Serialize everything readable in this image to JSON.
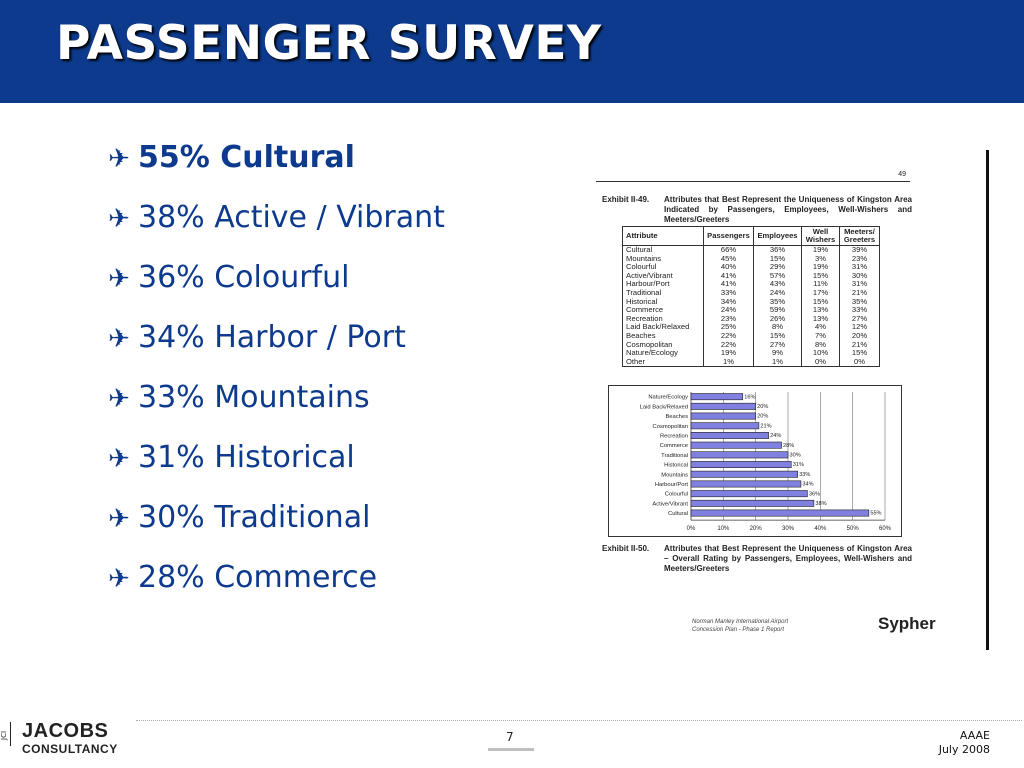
{
  "slide": {
    "title": "PASSENGER SURVEY",
    "bullets": [
      {
        "text": "55% Cultural",
        "bold": true
      },
      {
        "text": "38% Active / Vibrant",
        "bold": false
      },
      {
        "text": "36% Colourful",
        "bold": false
      },
      {
        "text": "34% Harbor / Port",
        "bold": false
      },
      {
        "text": "33% Mountains",
        "bold": false
      },
      {
        "text": "31% Historical",
        "bold": false
      },
      {
        "text": "30% Traditional",
        "bold": false
      },
      {
        "text": "28% Commerce",
        "bold": false
      }
    ],
    "bullet_glyph": "✈",
    "slide_number": "7",
    "corner_line1": "AAAE",
    "corner_line2": "July 2008",
    "logo_line1": "JACOBS",
    "logo_line2": "CONSULTANCY",
    "logo_side": "JCI",
    "colors": {
      "header": "#0d3a8c",
      "text": "#0d3a8c",
      "bar": "#8080e0"
    }
  },
  "document": {
    "page_number": "49",
    "exhibit1_num": "Exhibit II-49.",
    "exhibit1_caption": "Attributes that Best Represent the Uniqueness of Kingston Area Indicated by Passengers, Employees, Well-Wishers and Meeters/Greeters",
    "table": {
      "headers": [
        "Attribute",
        "Passengers",
        "Employees",
        "Well Wishers",
        "Meeters/ Greeters"
      ],
      "rows": [
        [
          "Cultural",
          "66%",
          "36%",
          "19%",
          "39%"
        ],
        [
          "Mountains",
          "45%",
          "15%",
          "3%",
          "23%"
        ],
        [
          "Colourful",
          "40%",
          "29%",
          "19%",
          "31%"
        ],
        [
          "Active/Vibrant",
          "41%",
          "57%",
          "15%",
          "30%"
        ],
        [
          "Harbour/Port",
          "41%",
          "43%",
          "11%",
          "31%"
        ],
        [
          "Traditional",
          "33%",
          "24%",
          "17%",
          "21%"
        ],
        [
          "Historical",
          "34%",
          "35%",
          "15%",
          "35%"
        ],
        [
          "Commerce",
          "24%",
          "59%",
          "13%",
          "33%"
        ],
        [
          "Recreation",
          "23%",
          "26%",
          "13%",
          "27%"
        ],
        [
          "Laid Back/Relaxed",
          "25%",
          "8%",
          "4%",
          "12%"
        ],
        [
          "Beaches",
          "22%",
          "15%",
          "7%",
          "20%"
        ],
        [
          "Cosmopolitan",
          "22%",
          "27%",
          "8%",
          "21%"
        ],
        [
          "Nature/Ecology",
          "19%",
          "9%",
          "10%",
          "15%"
        ],
        [
          "Other",
          "1%",
          "1%",
          "0%",
          "0%"
        ]
      ]
    },
    "exhibit2_num": "Exhibit II-50.",
    "exhibit2_caption": "Attributes that Best Represent the Uniqueness of Kingston Area – Overall Rating by Passengers, Employees, Well-Wishers and Meeters/Greeters",
    "footer_line1": "Norman Manley International Airport",
    "footer_line2": "Concession Plan - Phase 1 Report",
    "brand": "Sypher"
  },
  "chart_data": {
    "type": "bar",
    "orientation": "horizontal",
    "categories": [
      "Nature/Ecology",
      "Laid Back/Relaxed",
      "Beaches",
      "Cosmopolitan",
      "Recreation",
      "Commerce",
      "Traditional",
      "Historical",
      "Mountains",
      "Harbour/Port",
      "Colourful",
      "Active/Vibrant",
      "Cultural"
    ],
    "values": [
      16,
      20,
      20,
      21,
      24,
      28,
      30,
      31,
      33,
      34,
      36,
      38,
      55
    ],
    "value_labels": [
      "16%",
      "20%",
      "20%",
      "21%",
      "24%",
      "28%",
      "30%",
      "31%",
      "33%",
      "34%",
      "36%",
      "38%",
      "55%"
    ],
    "xlim": [
      0,
      60
    ],
    "x_ticks": [
      "0%",
      "10%",
      "20%",
      "30%",
      "40%",
      "50%",
      "60%"
    ],
    "grid": true,
    "legend": "none"
  }
}
